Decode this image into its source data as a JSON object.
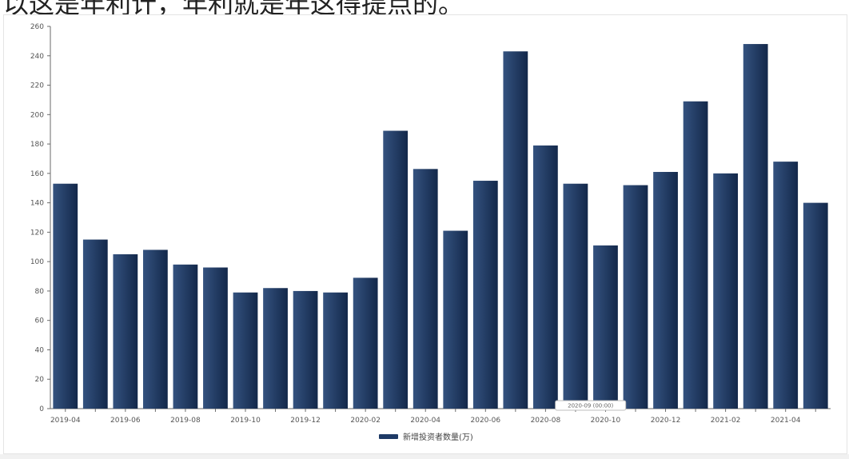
{
  "header": {
    "caption": "以这是年利计，年利就是年这得提点的。"
  },
  "colors": {
    "bar_top": "#34527f",
    "bar_bottom": "#13284a",
    "axis": "#6a6a6a",
    "legend_swatch": "#1e3a66"
  },
  "tooltip": {
    "text": "2020-09 (00:00)"
  },
  "chart_data": {
    "type": "bar",
    "title": "",
    "xlabel": "",
    "ylabel": "",
    "ylim": [
      0,
      260
    ],
    "yticks": [
      0,
      20,
      40,
      60,
      80,
      100,
      120,
      140,
      160,
      180,
      200,
      220,
      240,
      260
    ],
    "categories": [
      "2019-04",
      "2019-05",
      "2019-06",
      "2019-07",
      "2019-08",
      "2019-09",
      "2019-10",
      "2019-11",
      "2019-12",
      "2020-01",
      "2020-02",
      "2020-03",
      "2020-04",
      "2020-05",
      "2020-06",
      "2020-07",
      "2020-08",
      "2020-09",
      "2020-10",
      "2020-11",
      "2020-12",
      "2021-01",
      "2021-02",
      "2021-03",
      "2021-04",
      "2021-05"
    ],
    "xtick_labels": [
      "2019-04",
      "2019-06",
      "2019-08",
      "2019-10",
      "2019-12",
      "2020-02",
      "2020-04",
      "2020-06",
      "2020-08",
      "2020-10",
      "2020-12",
      "2021-02",
      "2021-04"
    ],
    "series": [
      {
        "name": "新增投资者数量(万)",
        "values": [
          153,
          115,
          105,
          108,
          98,
          96,
          79,
          82,
          80,
          79,
          89,
          189,
          163,
          121,
          155,
          243,
          179,
          153,
          111,
          152,
          161,
          209,
          160,
          248,
          168,
          140
        ]
      }
    ],
    "legend": {
      "position": "bottom-center"
    },
    "grid": false
  }
}
